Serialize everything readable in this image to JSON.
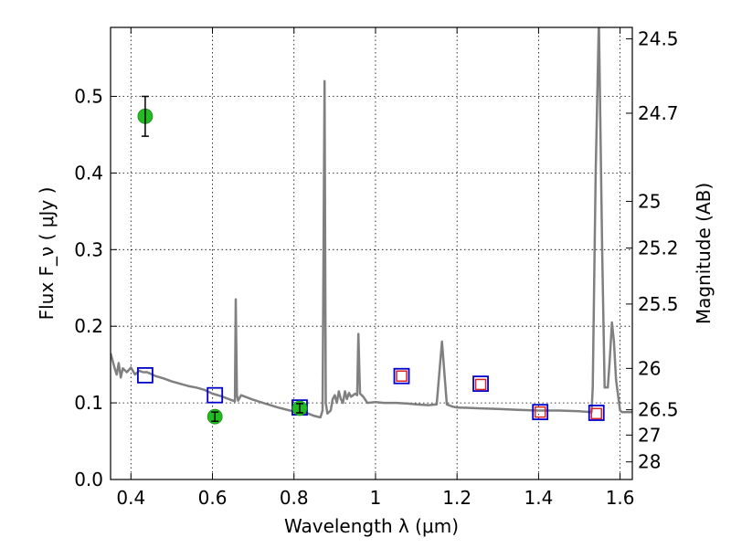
{
  "chart_data": {
    "type": "scatter",
    "xlabel": "Wavelength  λ (μm)",
    "ylabel": "Flux  F_ν  ( μJy )",
    "ylabel_right": "Magnitude (AB)",
    "xlim": [
      0.35,
      1.63
    ],
    "ylim": [
      0.0,
      0.59
    ],
    "grid": true,
    "x_ticks": [
      0.4,
      0.6,
      0.8,
      1.0,
      1.2,
      1.4,
      1.6
    ],
    "x_tick_labels": [
      "0.4",
      "0.6",
      "0.8",
      "1",
      "1.2",
      "1.4",
      "1.6"
    ],
    "y_ticks": [
      0.0,
      0.1,
      0.2,
      0.3,
      0.4,
      0.5
    ],
    "y_tick_labels": [
      "0.0",
      "0.1",
      "0.2",
      "0.3",
      "0.4",
      "0.5"
    ],
    "right_ticks": [
      {
        "label": "24.5",
        "flux": 0.575
      },
      {
        "label": "24.7",
        "flux": 0.478
      },
      {
        "label": "25",
        "flux": 0.363
      },
      {
        "label": "25.2",
        "flux": 0.302
      },
      {
        "label": "25.5",
        "flux": 0.229
      },
      {
        "label": "26",
        "flux": 0.145
      },
      {
        "label": "26.5",
        "flux": 0.091
      },
      {
        "label": "27",
        "flux": 0.058
      },
      {
        "label": "28",
        "flux": 0.023
      }
    ],
    "model_spectrum": {
      "color": "#808080",
      "x": [
        0.35,
        0.36,
        0.365,
        0.37,
        0.375,
        0.38,
        0.39,
        0.4,
        0.41,
        0.42,
        0.43,
        0.44,
        0.46,
        0.48,
        0.5,
        0.52,
        0.54,
        0.56,
        0.58,
        0.6,
        0.62,
        0.64,
        0.655,
        0.657,
        0.66,
        0.663,
        0.67,
        0.7,
        0.73,
        0.76,
        0.79,
        0.81,
        0.83,
        0.85,
        0.865,
        0.87,
        0.875,
        0.878,
        0.882,
        0.89,
        0.895,
        0.9,
        0.905,
        0.91,
        0.915,
        0.92,
        0.925,
        0.93,
        0.935,
        0.94,
        0.945,
        0.95,
        0.955,
        0.958,
        0.962,
        0.966,
        0.97,
        0.98,
        1.0,
        1.02,
        1.05,
        1.08,
        1.1,
        1.13,
        1.15,
        1.163,
        1.175,
        1.19,
        1.2,
        1.25,
        1.3,
        1.35,
        1.4,
        1.45,
        1.5,
        1.53,
        1.533,
        1.54,
        1.548,
        1.556,
        1.562,
        1.57,
        1.575,
        1.58,
        1.585,
        1.59,
        1.6,
        1.605,
        1.61,
        1.63
      ],
      "y": [
        0.165,
        0.145,
        0.137,
        0.152,
        0.133,
        0.145,
        0.14,
        0.146,
        0.137,
        0.142,
        0.14,
        0.14,
        0.135,
        0.132,
        0.128,
        0.125,
        0.122,
        0.12,
        0.117,
        0.112,
        0.109,
        0.105,
        0.102,
        0.235,
        0.11,
        0.103,
        0.11,
        0.104,
        0.099,
        0.094,
        0.09,
        0.089,
        0.087,
        0.083,
        0.081,
        0.09,
        0.52,
        0.1,
        0.086,
        0.09,
        0.105,
        0.11,
        0.1,
        0.115,
        0.105,
        0.1,
        0.115,
        0.105,
        0.113,
        0.108,
        0.11,
        0.112,
        0.11,
        0.19,
        0.112,
        0.11,
        0.108,
        0.1,
        0.101,
        0.1,
        0.1,
        0.099,
        0.098,
        0.097,
        0.098,
        0.18,
        0.098,
        0.095,
        0.094,
        0.093,
        0.092,
        0.091,
        0.09,
        0.09,
        0.089,
        0.088,
        0.12,
        0.4,
        0.6,
        0.3,
        0.12,
        0.12,
        0.16,
        0.205,
        0.18,
        0.13,
        0.09,
        0.088,
        0.088,
        0.088
      ]
    },
    "observed_points": {
      "color": "#22bb22",
      "points": [
        {
          "x": 0.435,
          "y": 0.474,
          "err": 0.026
        },
        {
          "x": 0.606,
          "y": 0.082,
          "err": 0.006
        },
        {
          "x": 0.814,
          "y": 0.093,
          "err": 0.006
        }
      ]
    },
    "model_photometry": {
      "color": "#0000cc",
      "points": [
        {
          "x": 0.435,
          "y": 0.136
        },
        {
          "x": 0.606,
          "y": 0.11
        },
        {
          "x": 0.814,
          "y": 0.094
        },
        {
          "x": 1.064,
          "y": 0.135
        },
        {
          "x": 1.258,
          "y": 0.125
        },
        {
          "x": 1.404,
          "y": 0.088
        },
        {
          "x": 1.542,
          "y": 0.087
        }
      ]
    },
    "predicted_points": {
      "color": "#dd2222",
      "points": [
        {
          "x": 1.064,
          "y": 0.135
        },
        {
          "x": 1.258,
          "y": 0.124
        },
        {
          "x": 1.404,
          "y": 0.088
        },
        {
          "x": 1.542,
          "y": 0.086
        }
      ]
    }
  }
}
